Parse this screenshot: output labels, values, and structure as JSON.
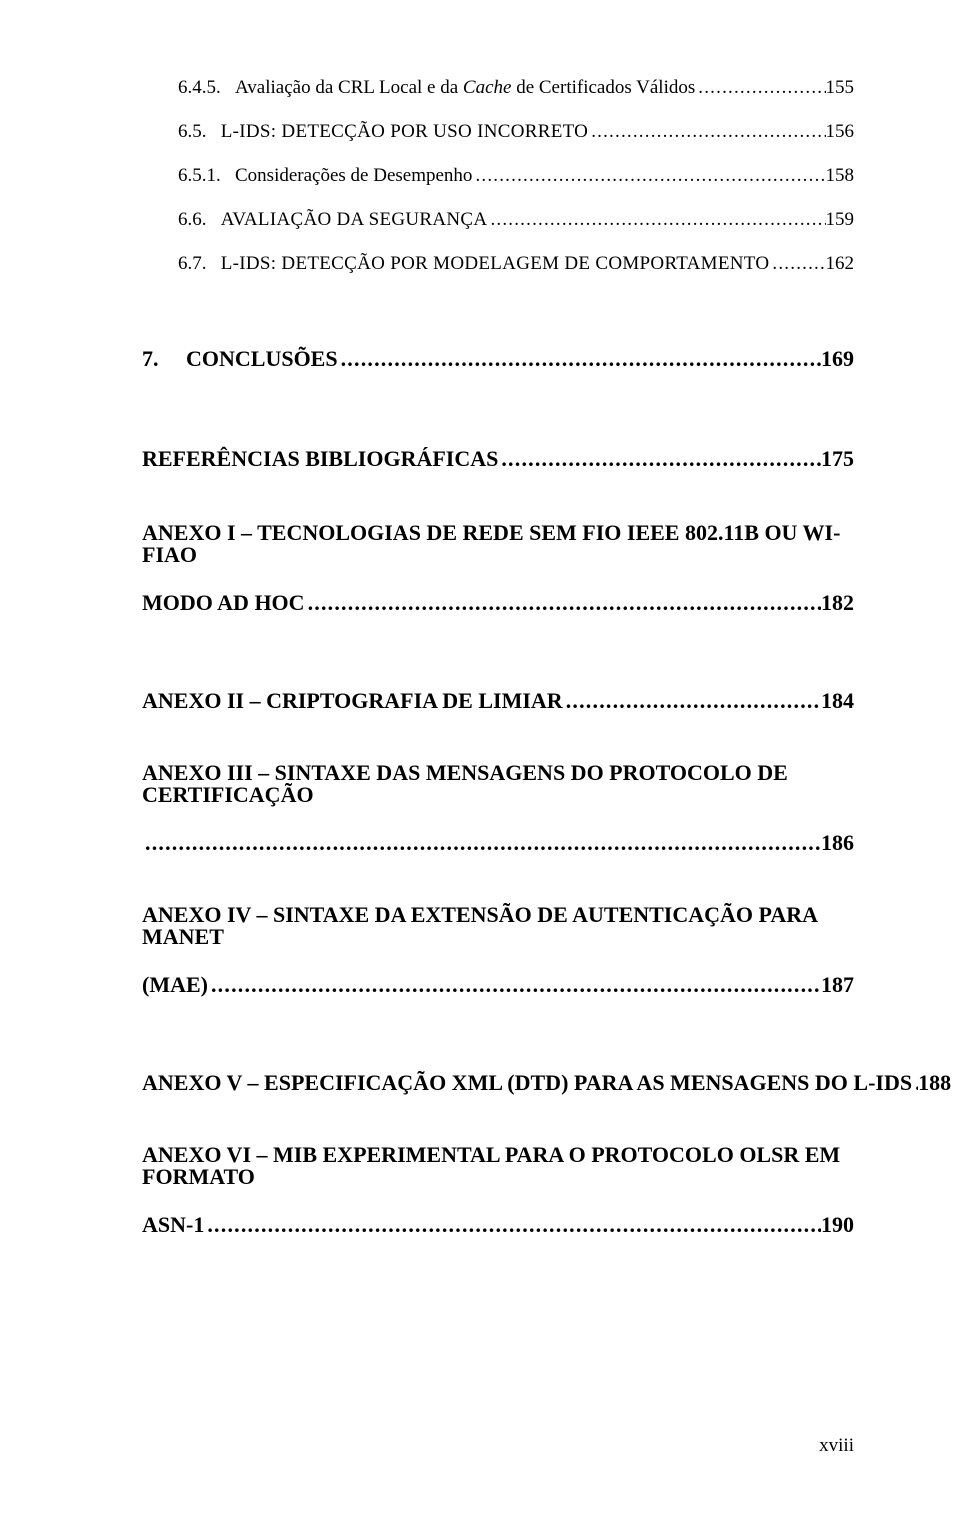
{
  "lines": [
    {
      "cls": "toc-line indent2",
      "partsKey": "p0",
      "page": "155"
    },
    {
      "cls": "toc-line indent1",
      "partsKey": "p1",
      "page": "156"
    },
    {
      "cls": "toc-line indent2",
      "partsKey": "p2",
      "page": "158"
    },
    {
      "cls": "toc-line indent1",
      "partsKey": "p3",
      "page": "159"
    },
    {
      "cls": "toc-line indent1",
      "partsKey": "p4",
      "page": "162"
    }
  ],
  "parts": {
    "p0": [
      {
        "t": "6.4.5.",
        "cls": ""
      },
      {
        "t": "   ",
        "cls": ""
      },
      {
        "t": "Avaliação da CRL Local e da ",
        "cls": ""
      },
      {
        "t": "Cache",
        "cls": "italic"
      },
      {
        "t": " de Certificados Válidos",
        "cls": ""
      }
    ],
    "p1": [
      {
        "t": "6.5.",
        "cls": ""
      },
      {
        "t": "   ",
        "cls": ""
      },
      {
        "t": "L-IDS: D",
        "cls": "sc"
      },
      {
        "t": "ETECÇÃO POR ",
        "cls": "sc"
      },
      {
        "t": "U",
        "cls": "sc"
      },
      {
        "t": "SO ",
        "cls": "sc"
      },
      {
        "t": "I",
        "cls": "sc"
      },
      {
        "t": "NCORRETO",
        "cls": "sc"
      }
    ],
    "p2": [
      {
        "t": "6.5.1.",
        "cls": ""
      },
      {
        "t": "   ",
        "cls": ""
      },
      {
        "t": "Considerações de Desempenho",
        "cls": ""
      }
    ],
    "p3": [
      {
        "t": "6.6.",
        "cls": ""
      },
      {
        "t": "   ",
        "cls": ""
      },
      {
        "t": "A",
        "cls": "sc"
      },
      {
        "t": "VALIAÇÃO DA ",
        "cls": "sc"
      },
      {
        "t": "S",
        "cls": "sc"
      },
      {
        "t": "EGURANÇA",
        "cls": "sc"
      }
    ],
    "p4": [
      {
        "t": "6.7.",
        "cls": ""
      },
      {
        "t": "   ",
        "cls": ""
      },
      {
        "t": "L-IDS: D",
        "cls": "sc"
      },
      {
        "t": "ETECÇÃO POR ",
        "cls": "sc"
      },
      {
        "t": "MO",
        "cls": "sc"
      },
      {
        "t": "DELAGEM DE ",
        "cls": "sc"
      },
      {
        "t": "C",
        "cls": "sc"
      },
      {
        "t": "OMPORTAMENTO",
        "cls": "sc"
      }
    ]
  },
  "h1lines": [
    {
      "label": "7.     CONCLUSÕES",
      "page": "169"
    },
    {
      "label": "REFERÊNCIAS BIBLIOGRÁFICAS",
      "page": "175"
    }
  ],
  "anexos": [
    {
      "l1": "ANEXO I – TECNOLOGIAS DE REDE SEM FIO IEEE 802.11B OU WI-FIAO",
      "l2": "MODO AD HOC",
      "page": "182"
    },
    {
      "l1": "ANEXO II – CRIPTOGRAFIA DE LIMIAR",
      "page": "184"
    },
    {
      "l1": "ANEXO III – SINTAXE DAS MENSAGENS DO PROTOCOLO DE CERTIFICAÇÃO",
      "page": "186",
      "breakAfterLabel": true
    },
    {
      "l1": "ANEXO IV – SINTAXE DA EXTENSÃO DE AUTENTICAÇÃO PARA MANET",
      "l2": "(MAE)",
      "page": "187"
    },
    {
      "l1": "ANEXO V – ESPECIFICAÇÃO XML (DTD) PARA AS MENSAGENS DO L-IDS",
      "page": "188"
    },
    {
      "l1": "ANEXO VI – MIB EXPERIMENTAL PARA O PROTOCOLO OLSR EM FORMATO",
      "l2": "ASN-1",
      "page": "190"
    }
  ],
  "pagenum": "xviii"
}
